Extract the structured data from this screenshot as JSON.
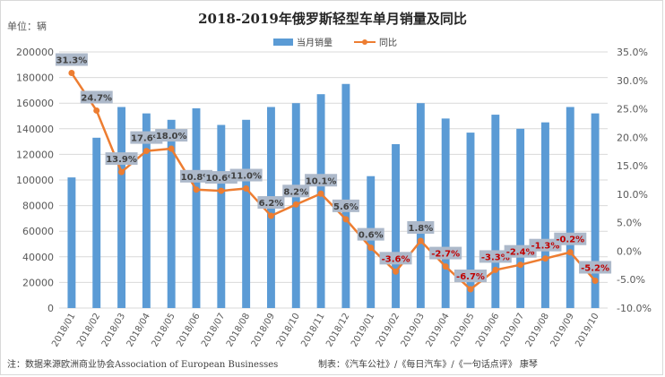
{
  "chart_data": {
    "type": "bar",
    "title": "2018-2019年俄罗斯轻型车单月销量及同比",
    "unit_label": "单位：辆",
    "categories": [
      "2018/01",
      "2018/02",
      "2018/03",
      "2018/04",
      "2018/05",
      "2018/06",
      "2018/07",
      "2018/08",
      "2018/09",
      "2018/10",
      "2018/11",
      "2018/12",
      "2019/01",
      "2019/02",
      "2019/03",
      "2019/04",
      "2019/05",
      "2019/06",
      "2019/07",
      "2019/08",
      "2019/09",
      "2019/10"
    ],
    "series": [
      {
        "name": "当月销量",
        "type": "bar",
        "axis": "left",
        "color": "#5b9bd5",
        "values": [
          102000,
          133000,
          157000,
          152000,
          147000,
          156000,
          143000,
          147000,
          157000,
          160000,
          167000,
          175000,
          103000,
          128000,
          160000,
          148000,
          137000,
          151000,
          140000,
          145000,
          157000,
          152000
        ]
      },
      {
        "name": "同比",
        "type": "line",
        "axis": "right",
        "color": "#ed7d31",
        "values": [
          31.3,
          24.7,
          13.9,
          17.6,
          18.0,
          10.8,
          10.6,
          11.0,
          6.2,
          8.2,
          10.1,
          5.6,
          0.6,
          -3.6,
          1.8,
          -2.7,
          -6.7,
          -3.3,
          -2.4,
          -1.3,
          -0.2,
          -5.2
        ],
        "labels": [
          "31.3%",
          "24.7%",
          "13.9%",
          "17.6%",
          "18.0%",
          "10.8%",
          "10.6%",
          "11.0%",
          "6.2%",
          "8.2%",
          "10.1%",
          "5.6%",
          "0.6%",
          "-3.6%",
          "1.8%",
          "-2.7%",
          "-6.7%",
          "-3.3%",
          "-2.4%",
          "-1.3%",
          "-0.2%",
          "-5.2%"
        ]
      }
    ],
    "y_left": {
      "ylim": [
        0,
        200000
      ],
      "ticks": [
        "0",
        "20000",
        "40000",
        "60000",
        "80000",
        "100000",
        "120000",
        "140000",
        "160000",
        "180000",
        "200000"
      ]
    },
    "y_right": {
      "ylim": [
        -10,
        35
      ],
      "ticks": [
        "-10.0%",
        "-5.0%",
        "0.0%",
        "5.0%",
        "10.0%",
        "15.0%",
        "20.0%",
        "25.0%",
        "30.0%",
        "35.0%"
      ]
    },
    "grid": true,
    "legend_position": "top-center",
    "label_colors": {
      "positive": "#404040",
      "negative": "#c00000",
      "label_bg": "#adb9ca"
    }
  },
  "footer": {
    "source": "注：数据来源欧洲商业协会Association of European Businesses",
    "credit": "制表：《汽车公社》/《每日汽车》/《一句话点评》 康琴"
  }
}
